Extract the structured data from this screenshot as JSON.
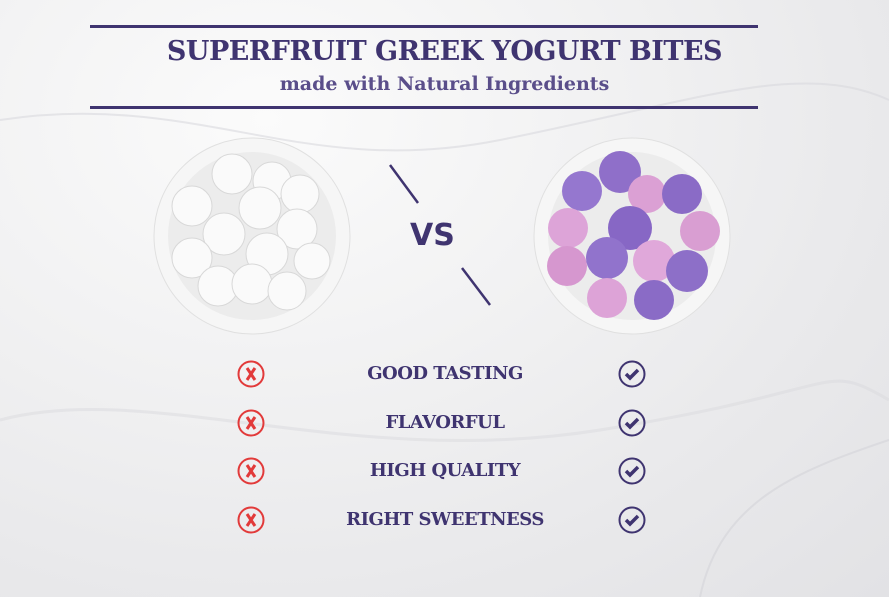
{
  "header": {
    "title": "SUPERFRUIT GREEK YOGURT BITES",
    "subtitle": "made with Natural Ingredients"
  },
  "comparison": {
    "vs_label": "VS"
  },
  "features": [
    {
      "label": "GOOD TASTING",
      "left": "x-icon",
      "right": "check-icon"
    },
    {
      "label": "FLAVORFUL",
      "left": "x-icon",
      "right": "check-icon"
    },
    {
      "label": "HIGH QUALITY",
      "left": "x-icon",
      "right": "check-icon"
    },
    {
      "label": "RIGHT SWEETNESS",
      "left": "x-icon",
      "right": "check-icon"
    }
  ],
  "colors": {
    "brand": "#3f3470",
    "negative": "#e23a3a"
  }
}
